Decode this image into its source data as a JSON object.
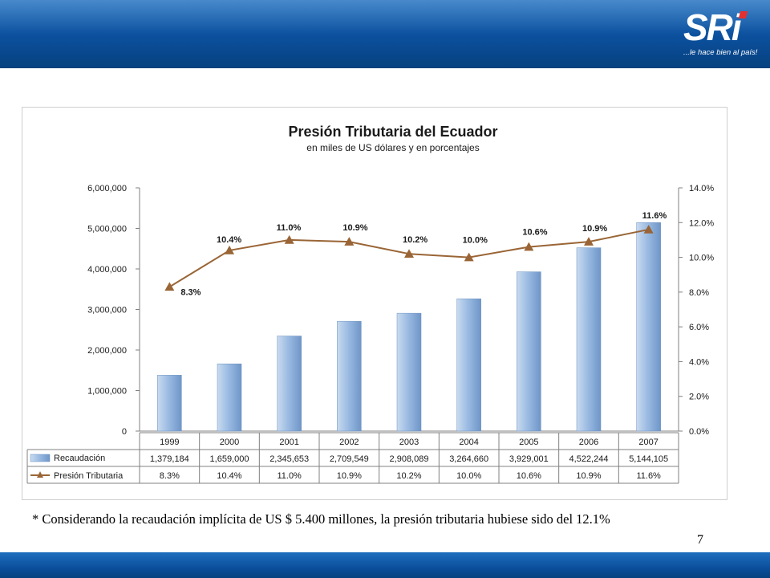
{
  "header": {
    "logo_text": "SRi",
    "slogan": "...le hace bien al país!"
  },
  "chart_data": {
    "type": "bar+line",
    "title": "Presión Tributaria del Ecuador",
    "subtitle": "en miles de US dólares y en porcentajes",
    "categories": [
      "1999",
      "2000",
      "2001",
      "2002",
      "2003",
      "2004",
      "2005",
      "2006",
      "2007"
    ],
    "series": [
      {
        "name": "Recaudación",
        "type": "bar",
        "axis": "left",
        "values": [
          1379184,
          1659000,
          2345653,
          2709549,
          2908089,
          3264660,
          3929001,
          4522244,
          5144105
        ],
        "labels": [
          "1,379,184",
          "1,659,000",
          "2,345,653",
          "2,709,549",
          "2,908,089",
          "3,264,660",
          "3,929,001",
          "4,522,244",
          "5,144,105"
        ],
        "color": "#8fb2dc"
      },
      {
        "name": "Presión Tributaria",
        "type": "line",
        "axis": "right",
        "values": [
          8.3,
          10.4,
          11.0,
          10.9,
          10.2,
          10.0,
          10.6,
          10.9,
          11.6
        ],
        "labels": [
          "8.3%",
          "10.4%",
          "11.0%",
          "10.9%",
          "10.2%",
          "10.0%",
          "10.6%",
          "10.9%",
          "11.6%"
        ],
        "color": "#9a6536"
      }
    ],
    "y_left": {
      "range": [
        0,
        6000000
      ],
      "ticks": [
        "0",
        "1,000,000",
        "2,000,000",
        "3,000,000",
        "4,000,000",
        "5,000,000",
        "6,000,000"
      ]
    },
    "y_right": {
      "range": [
        0,
        14
      ],
      "ticks": [
        "0.0%",
        "2.0%",
        "4.0%",
        "6.0%",
        "8.0%",
        "10.0%",
        "12.0%",
        "14.0%"
      ]
    },
    "data_table": true,
    "grid": false
  },
  "footnote": "* Considerando la recaudación implícita de US $ 5.400 millones, la presión tributaria hubiese sido del 12.1%",
  "page_number": "7"
}
